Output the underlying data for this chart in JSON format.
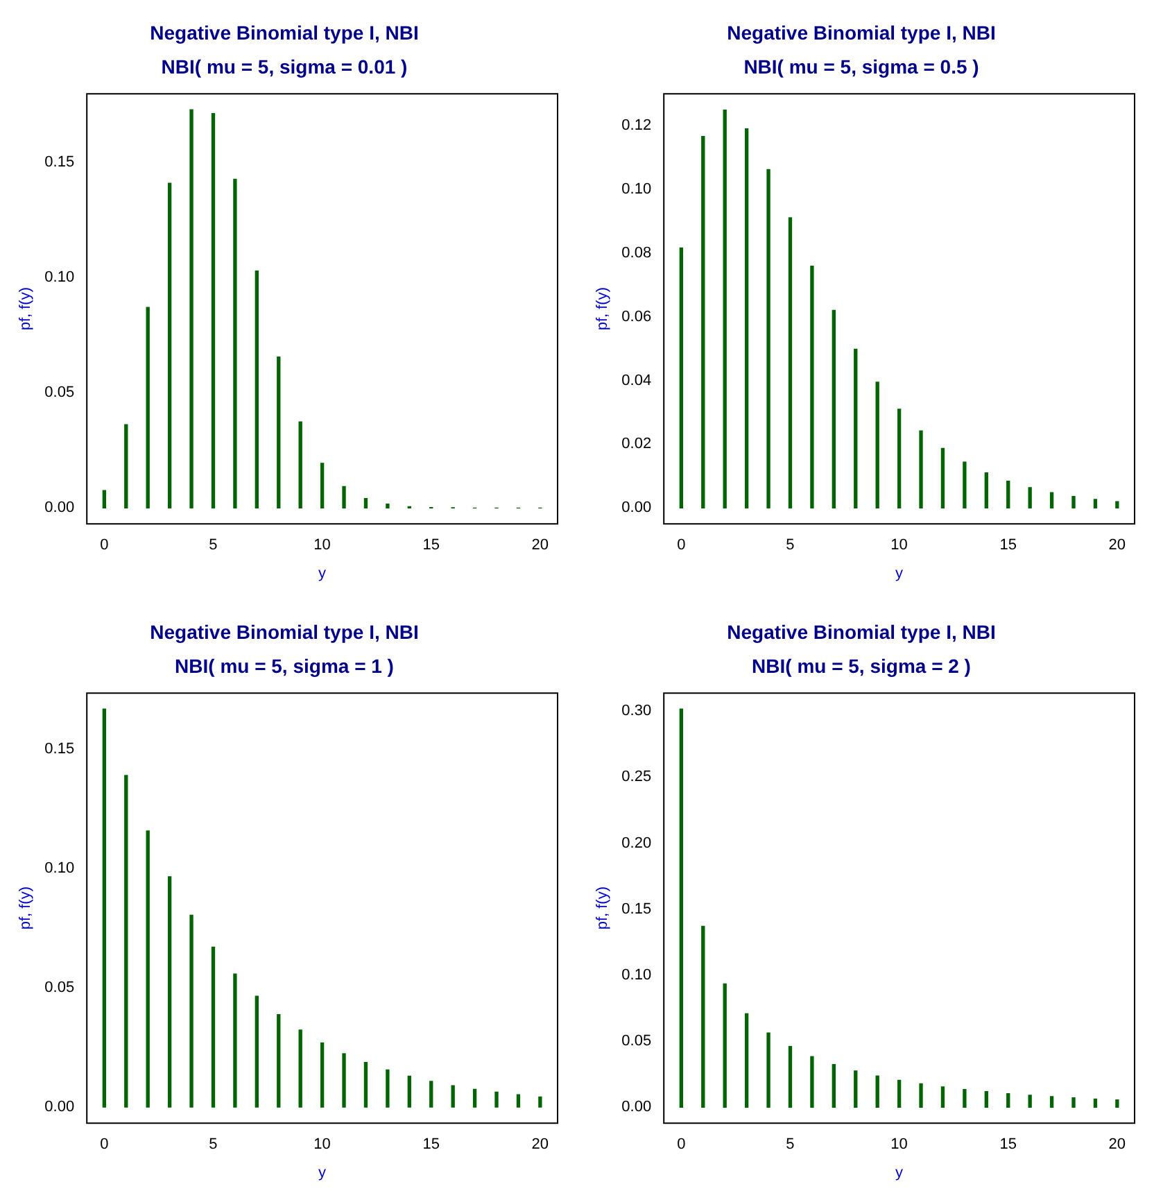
{
  "chart_data": [
    {
      "type": "bar",
      "title": "Negative Binomial type I, NBI",
      "subtitle": "NBI( mu = 5, sigma = 0.01 )",
      "xlabel": "y",
      "ylabel": "pf, f(y)",
      "color": "#006400",
      "x": [
        0,
        1,
        2,
        3,
        4,
        5,
        6,
        7,
        8,
        9,
        10,
        11,
        12,
        13,
        14,
        15,
        16,
        17,
        18,
        19,
        20
      ],
      "values": [
        0.0076,
        0.0362,
        0.0871,
        0.141,
        0.1729,
        0.1712,
        0.1427,
        0.1029,
        0.0655,
        0.0374,
        0.0194,
        0.0093,
        0.0041,
        0.0017,
        0.0006,
        0.0002,
        0.0001,
        0,
        0,
        0,
        0
      ],
      "xlim": [
        -0.8,
        20.8
      ],
      "xticks": [
        0,
        5,
        10,
        15,
        20
      ],
      "ylim": [
        -0.0069,
        0.1798
      ],
      "yticks": [
        {
          "value": 0,
          "label": "0.00"
        },
        {
          "value": 0.05,
          "label": "0.05"
        },
        {
          "value": 0.1,
          "label": "0.10"
        },
        {
          "value": 0.15,
          "label": "0.15"
        }
      ]
    },
    {
      "type": "bar",
      "title": "Negative Binomial type I, NBI",
      "subtitle": "NBI( mu = 5, sigma = 0.5 )",
      "xlabel": "y",
      "ylabel": "pf, f(y)",
      "color": "#006400",
      "x": [
        0,
        1,
        2,
        3,
        4,
        5,
        6,
        7,
        8,
        9,
        10,
        11,
        12,
        13,
        14,
        15,
        16,
        17,
        18,
        19,
        20
      ],
      "values": [
        0.0816,
        0.1166,
        0.1249,
        0.119,
        0.1062,
        0.0911,
        0.0759,
        0.062,
        0.0498,
        0.0395,
        0.031,
        0.0242,
        0.0187,
        0.0144,
        0.011,
        0.0084,
        0.0064,
        0.0048,
        0.0036,
        0.0027,
        0.002
      ],
      "xlim": [
        -0.8,
        20.8
      ],
      "xticks": [
        0,
        5,
        10,
        15,
        20
      ],
      "ylim": [
        -0.005,
        0.13
      ],
      "yticks": [
        {
          "value": 0,
          "label": "0.00"
        },
        {
          "value": 0.02,
          "label": "0.02"
        },
        {
          "value": 0.04,
          "label": "0.04"
        },
        {
          "value": 0.06,
          "label": "0.06"
        },
        {
          "value": 0.08,
          "label": "0.08"
        },
        {
          "value": 0.1,
          "label": "0.10"
        },
        {
          "value": 0.12,
          "label": "0.12"
        }
      ]
    },
    {
      "type": "bar",
      "title": "Negative Binomial type I, NBI",
      "subtitle": "NBI( mu = 5, sigma = 1 )",
      "xlabel": "y",
      "ylabel": "pf, f(y)",
      "color": "#006400",
      "x": [
        0,
        1,
        2,
        3,
        4,
        5,
        6,
        7,
        8,
        9,
        10,
        11,
        12,
        13,
        14,
        15,
        16,
        17,
        18,
        19,
        20
      ],
      "values": [
        0.1667,
        0.1389,
        0.1157,
        0.0965,
        0.0804,
        0.067,
        0.0558,
        0.0465,
        0.0388,
        0.0323,
        0.0269,
        0.0224,
        0.0187,
        0.0156,
        0.013,
        0.0108,
        0.009,
        0.0075,
        0.0063,
        0.0052,
        0.0043
      ],
      "xlim": [
        -0.8,
        20.8
      ],
      "xticks": [
        0,
        5,
        10,
        15,
        20
      ],
      "ylim": [
        -0.0067,
        0.1734
      ],
      "yticks": [
        {
          "value": 0,
          "label": "0.00"
        },
        {
          "value": 0.05,
          "label": "0.05"
        },
        {
          "value": 0.1,
          "label": "0.10"
        },
        {
          "value": 0.15,
          "label": "0.15"
        }
      ]
    },
    {
      "type": "bar",
      "title": "Negative Binomial type I, NBI",
      "subtitle": "NBI( mu = 5, sigma = 2 )",
      "xlabel": "y",
      "ylabel": "pf, f(y)",
      "color": "#006400",
      "x": [
        0,
        1,
        2,
        3,
        4,
        5,
        6,
        7,
        8,
        9,
        10,
        11,
        12,
        13,
        14,
        15,
        16,
        17,
        18,
        19,
        20
      ],
      "values": [
        0.3015,
        0.1371,
        0.0934,
        0.0708,
        0.0563,
        0.0461,
        0.0384,
        0.0324,
        0.0276,
        0.0237,
        0.0205,
        0.0178,
        0.0155,
        0.0135,
        0.0119,
        0.0104,
        0.0092,
        0.0081,
        0.0072,
        0.0063,
        0.0056
      ],
      "xlim": [
        -0.8,
        20.8
      ],
      "xticks": [
        0,
        5,
        10,
        15,
        20
      ],
      "ylim": [
        -0.012,
        0.3136
      ],
      "yticks": [
        {
          "value": 0,
          "label": "0.00"
        },
        {
          "value": 0.05,
          "label": "0.05"
        },
        {
          "value": 0.1,
          "label": "0.10"
        },
        {
          "value": 0.15,
          "label": "0.15"
        },
        {
          "value": 0.2,
          "label": "0.20"
        },
        {
          "value": 0.25,
          "label": "0.25"
        },
        {
          "value": 0.3,
          "label": "0.30"
        }
      ]
    }
  ]
}
